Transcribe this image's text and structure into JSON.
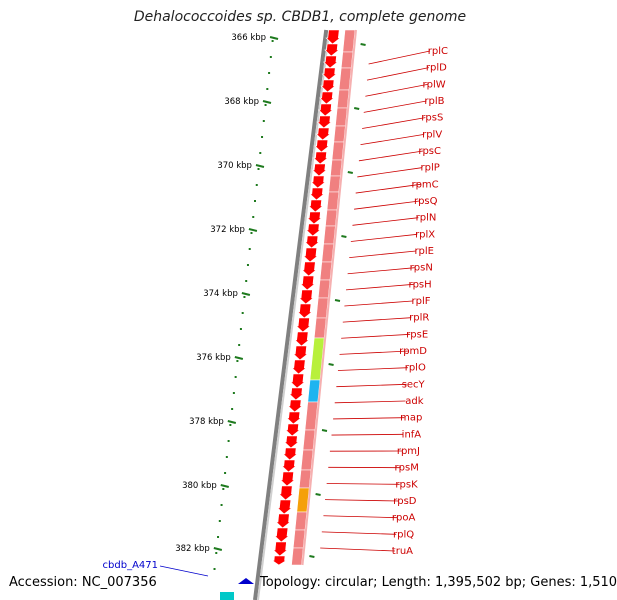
{
  "title": "Dehalococcoides sp. CBDB1, complete genome",
  "accession": "Accession: NC_007356",
  "topology": "Topology: circular; Length: 1,395,502 bp; Genes: 1,510",
  "bp_ticks": [
    "366 kbp",
    "368 kbp",
    "370 kbp",
    "372 kbp",
    "374 kbp",
    "376 kbp",
    "378 kbp",
    "380 kbp",
    "382 kbp"
  ],
  "genes": [
    "rplC",
    "rplD",
    "rplW",
    "rplB",
    "rpsS",
    "rplV",
    "rpsC",
    "rplP",
    "rpmC",
    "rpsQ",
    "rplN",
    "rplX",
    "rplE",
    "rpsN",
    "rpsH",
    "rplF",
    "rplR",
    "rpsE",
    "rpmD",
    "rplO",
    "secY",
    "adk",
    "map",
    "infA",
    "rpmJ",
    "rpsM",
    "rpsK",
    "rpsD",
    "rpoA",
    "rplQ",
    "truA"
  ],
  "feature_label": "cbdb_A471",
  "colors": {
    "gene_arrow": "#ff0000",
    "cds_track": "#f08080",
    "secY": "#b8f03c",
    "adk": "#1eb4f0",
    "rpoA": "#f5a00a",
    "label": "#cc0000",
    "tick": "#1e7a1e",
    "feature": "#0000cc"
  }
}
